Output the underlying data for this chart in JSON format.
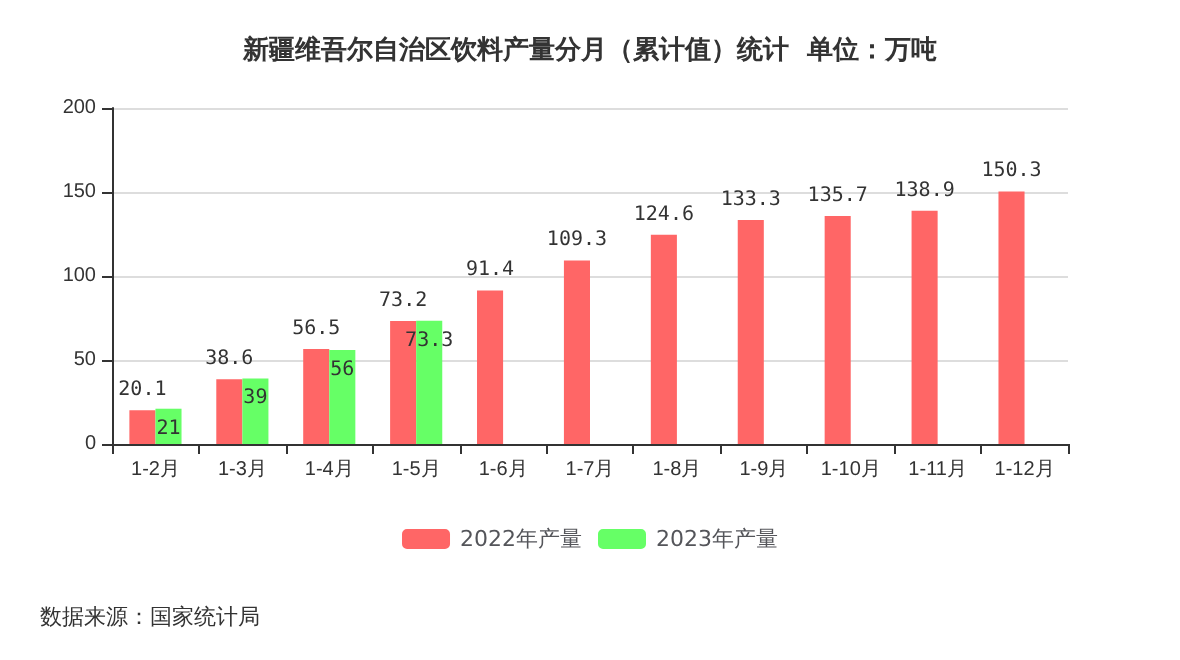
{
  "chart_data": {
    "type": "bar",
    "title": "新疆维吾尔自治区饮料产量分月（累计值）统计  单位：万吨",
    "categories": [
      "1-2月",
      "1-3月",
      "1-4月",
      "1-5月",
      "1-6月",
      "1-7月",
      "1-8月",
      "1-9月",
      "1-10月",
      "1-11月",
      "1-12月"
    ],
    "series": [
      {
        "name": "2022年产量",
        "color": "#ff6666",
        "values": [
          20.1,
          38.6,
          56.5,
          73.2,
          91.4,
          109.3,
          124.6,
          133.3,
          135.7,
          138.9,
          150.3
        ]
      },
      {
        "name": "2023年产量",
        "color": "#66ff66",
        "values": [
          21,
          39,
          56,
          73.3,
          null,
          null,
          null,
          null,
          null,
          null,
          null
        ]
      }
    ],
    "ylim": [
      0,
      200
    ],
    "yticks": [
      0,
      50,
      100,
      150,
      200
    ],
    "grid": "y",
    "legend": "bottom",
    "data_labels": true,
    "annotations": [
      "数据来源：国家统计局"
    ]
  }
}
